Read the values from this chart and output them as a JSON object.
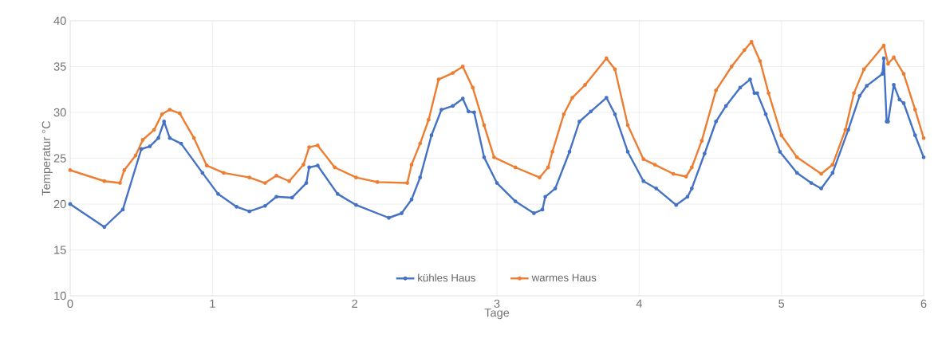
{
  "chart_data": {
    "type": "line",
    "xlabel": "Tage",
    "ylabel": "Temperatur °C",
    "xlim": [
      0,
      6
    ],
    "ylim": [
      10,
      40
    ],
    "xticks": [
      0,
      1,
      2,
      3,
      4,
      5,
      6
    ],
    "yticks": [
      10,
      15,
      20,
      25,
      30,
      35,
      40
    ],
    "grid": true,
    "legend": "bottom",
    "marker": "circle",
    "line_style": "solid",
    "series": [
      {
        "name": "kühles Haus",
        "color": "#4472c4",
        "x": [
          0,
          0.24,
          0.37,
          0.5,
          0.56,
          0.62,
          0.66,
          0.7,
          0.78,
          0.93,
          1.04,
          1.17,
          1.26,
          1.37,
          1.45,
          1.56,
          1.66,
          1.68,
          1.74,
          1.88,
          2.01,
          2.24,
          2.33,
          2.4,
          2.46,
          2.54,
          2.61,
          2.69,
          2.76,
          2.8,
          2.84,
          2.91,
          3.0,
          3.13,
          3.26,
          3.32,
          3.34,
          3.41,
          3.51,
          3.58,
          3.66,
          3.77,
          3.83,
          3.92,
          4.03,
          4.12,
          4.26,
          4.34,
          4.37,
          4.46,
          4.54,
          4.61,
          4.71,
          4.78,
          4.81,
          4.83,
          4.89,
          4.99,
          5.11,
          5.21,
          5.28,
          5.36,
          5.47,
          5.55,
          5.6,
          5.71,
          5.72,
          5.74,
          5.75,
          5.79,
          5.83,
          5.86,
          5.94,
          6.0
        ],
        "values": [
          20.0,
          17.5,
          19.4,
          26.0,
          26.3,
          27.2,
          29.0,
          27.2,
          26.6,
          23.4,
          21.1,
          19.7,
          19.2,
          19.8,
          20.8,
          20.7,
          22.3,
          24.0,
          24.2,
          21.1,
          19.9,
          18.5,
          19.0,
          20.5,
          22.9,
          27.5,
          30.3,
          30.7,
          31.5,
          30.1,
          30.0,
          25.1,
          22.3,
          20.3,
          19.0,
          19.4,
          20.8,
          21.7,
          25.7,
          29.0,
          30.1,
          31.6,
          29.8,
          25.7,
          22.5,
          21.7,
          19.9,
          20.8,
          21.7,
          25.5,
          29.0,
          30.7,
          32.7,
          33.6,
          32.1,
          32.1,
          29.8,
          25.7,
          23.4,
          22.3,
          21.7,
          23.4,
          28.1,
          31.8,
          32.9,
          34.2,
          35.9,
          29.0,
          29.0,
          33.0,
          31.4,
          31.0,
          27.5,
          25.1
        ]
      },
      {
        "name": "warmes Haus",
        "color": "#ed7d31",
        "x": [
          0,
          0.24,
          0.35,
          0.38,
          0.46,
          0.51,
          0.59,
          0.645,
          0.7,
          0.77,
          0.87,
          0.96,
          1.08,
          1.26,
          1.37,
          1.45,
          1.54,
          1.64,
          1.68,
          1.74,
          1.86,
          2.01,
          2.16,
          2.37,
          2.4,
          2.46,
          2.52,
          2.59,
          2.69,
          2.76,
          2.83,
          2.91,
          2.98,
          3.13,
          3.3,
          3.36,
          3.39,
          3.47,
          3.53,
          3.62,
          3.77,
          3.83,
          3.92,
          4.03,
          4.11,
          4.24,
          4.33,
          4.37,
          4.44,
          4.54,
          4.65,
          4.74,
          4.79,
          4.85,
          4.91,
          5.0,
          5.11,
          5.28,
          5.36,
          5.45,
          5.51,
          5.58,
          5.72,
          5.75,
          5.79,
          5.86,
          5.94,
          6.0
        ],
        "values": [
          23.7,
          22.5,
          22.3,
          23.7,
          25.3,
          27.0,
          28.1,
          29.8,
          30.3,
          29.9,
          27.2,
          24.2,
          23.4,
          22.9,
          22.3,
          23.1,
          22.5,
          24.3,
          26.2,
          26.4,
          24.0,
          22.9,
          22.4,
          22.3,
          24.3,
          26.6,
          29.2,
          33.6,
          34.3,
          35.0,
          32.7,
          28.6,
          25.1,
          24.0,
          22.9,
          24.0,
          25.7,
          29.8,
          31.6,
          33.0,
          35.9,
          34.7,
          28.6,
          24.9,
          24.3,
          23.3,
          23.0,
          24.0,
          26.9,
          32.4,
          35.0,
          36.8,
          37.7,
          35.6,
          32.1,
          27.5,
          25.1,
          23.3,
          24.3,
          28.1,
          32.1,
          34.7,
          37.3,
          35.3,
          36.0,
          34.2,
          30.3,
          27.2
        ]
      }
    ]
  }
}
